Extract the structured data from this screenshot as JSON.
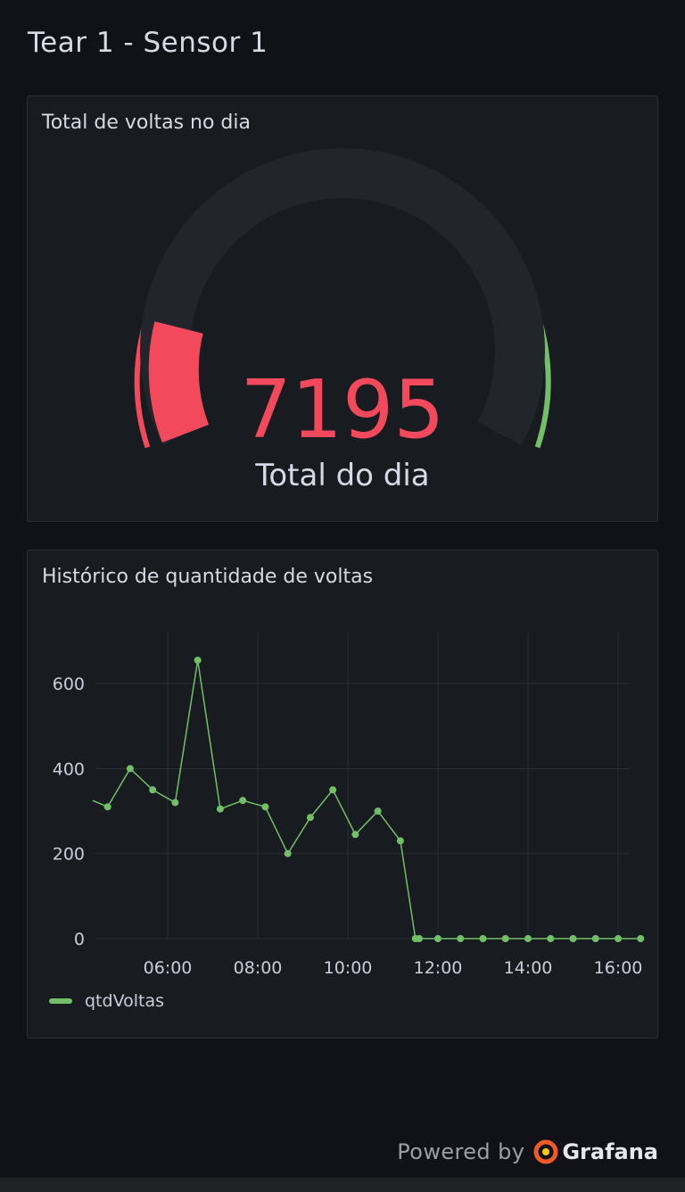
{
  "dashboard": {
    "title": "Tear 1  -  Sensor 1"
  },
  "gauge_panel": {
    "title": "Total de voltas no dia",
    "value": "7195",
    "label": "Total do dia",
    "value_color": "#f2495c",
    "thresholds": {
      "red": "#f2495c",
      "orange": "#ff9830",
      "green": "#73bf69"
    }
  },
  "timeseries_panel": {
    "title": "Histórico de quantidade de voltas"
  },
  "chart_data": {
    "type": "line",
    "series": [
      {
        "name": "qtdVoltas",
        "color": "#73bf69",
        "x": [
          "04:20",
          "04:40",
          "05:10",
          "05:40",
          "06:10",
          "06:40",
          "07:10",
          "07:40",
          "08:10",
          "08:40",
          "09:10",
          "09:40",
          "10:10",
          "10:40",
          "11:10",
          "11:30",
          "11:35",
          "12:00",
          "12:30",
          "13:00",
          "13:30",
          "14:00",
          "14:30",
          "15:00",
          "15:30",
          "16:00",
          "16:30"
        ],
        "y": [
          325,
          310,
          400,
          350,
          320,
          655,
          305,
          325,
          310,
          200,
          285,
          350,
          245,
          300,
          230,
          0,
          0,
          0,
          0,
          0,
          0,
          0,
          0,
          0,
          0,
          0,
          0
        ]
      }
    ],
    "x_ticks": [
      "06:00",
      "08:00",
      "10:00",
      "12:00",
      "14:00",
      "16:00"
    ],
    "y_ticks": [
      "0",
      "200",
      "400",
      "600"
    ],
    "ylim": [
      0,
      720
    ],
    "grid": true,
    "legend": "bottom-left"
  },
  "footer": {
    "powered_by": "Powered by",
    "brand": "Grafana"
  }
}
